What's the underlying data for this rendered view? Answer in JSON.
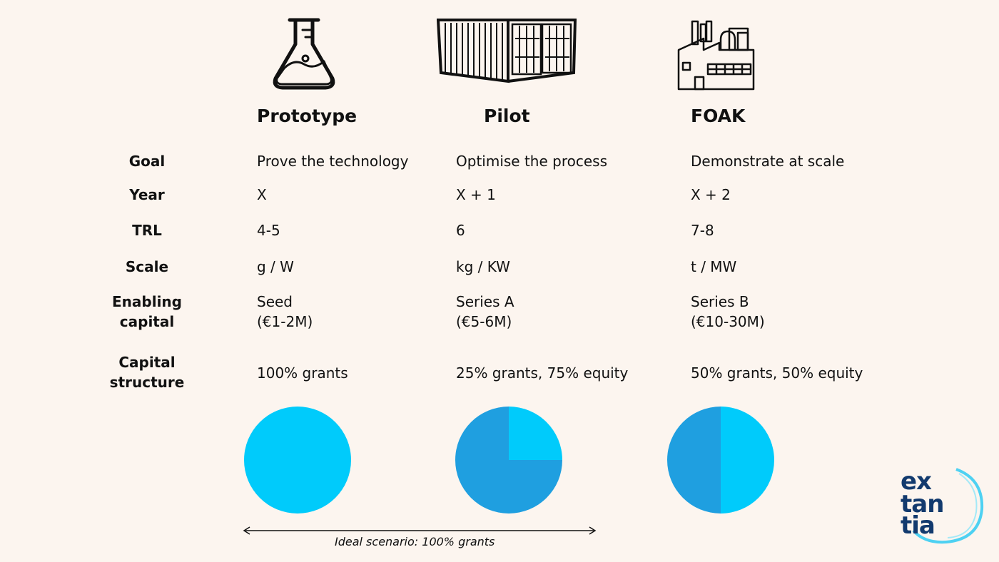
{
  "stages": [
    {
      "name": "Prototype",
      "icon": "flask-icon"
    },
    {
      "name": "Pilot",
      "icon": "shipping-container-icon"
    },
    {
      "name": "FOAK",
      "icon": "factory-icon"
    }
  ],
  "rows": [
    {
      "label": "Goal",
      "values": [
        "Prove the technology",
        "Optimise the process",
        "Demonstrate at scale"
      ]
    },
    {
      "label": "Year",
      "values": [
        "X",
        "X + 1",
        "X + 2"
      ]
    },
    {
      "label": "TRL",
      "values": [
        "4-5",
        "6",
        "7-8"
      ]
    },
    {
      "label": "Scale",
      "values": [
        "g / W",
        "kg / KW",
        "t / MW"
      ]
    },
    {
      "label": "Enabling\ncapital",
      "values": [
        "Seed\n(€1-2M)",
        "Series A\n(€5-6M)",
        "Series B\n(€10-30M)"
      ]
    },
    {
      "label": "Capital\nstructure",
      "values": [
        "100% grants",
        "25% grants, 75% equity",
        "50% grants, 50% equity"
      ]
    }
  ],
  "chart_data": {
    "type": "pie",
    "charts": [
      {
        "slices": [
          {
            "part": "grants",
            "value": 100
          },
          {
            "part": "equity",
            "value": 0
          }
        ]
      },
      {
        "slices": [
          {
            "part": "grants",
            "value": 25
          },
          {
            "part": "equity",
            "value": 75
          }
        ]
      },
      {
        "slices": [
          {
            "part": "grants",
            "value": 50
          },
          {
            "part": "equity",
            "value": 50
          }
        ]
      }
    ],
    "colors": {
      "grants": "#00cbfb",
      "equity": "#1f9fe0"
    }
  },
  "annotation": "Ideal scenario: 100% grants",
  "logo": "extantia",
  "colors": {
    "background": "#fcf5ef",
    "logo_text": "#123a6e",
    "logo_ring": "#22c8f2"
  }
}
